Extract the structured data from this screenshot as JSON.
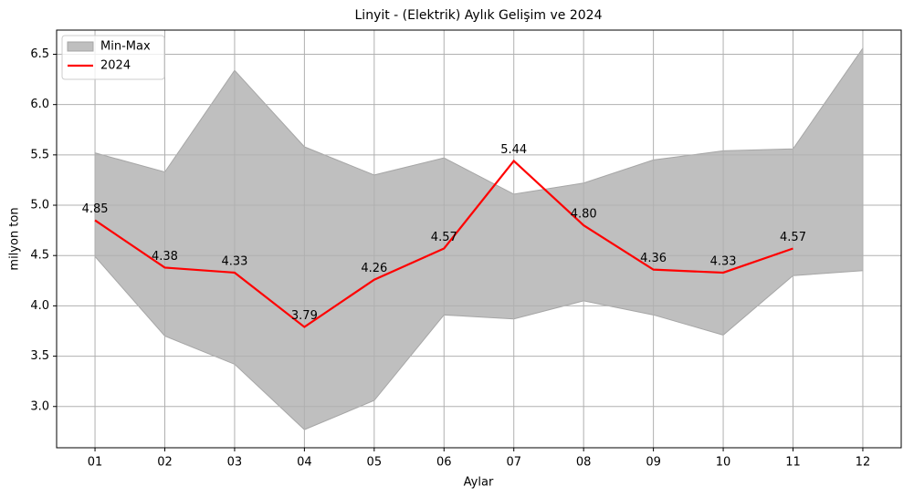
{
  "chart_data": {
    "type": "line",
    "title": "Linyit - (Elektrik) Aylık Gelişim ve 2024",
    "x_label": "Aylar",
    "y_label": "milyon ton",
    "categories": [
      "01",
      "02",
      "03",
      "04",
      "05",
      "06",
      "07",
      "08",
      "09",
      "10",
      "11",
      "12"
    ],
    "band": {
      "name": "Min-Max",
      "color": "#bfbfbf",
      "edge_color": "#a6a6a6",
      "max": [
        5.52,
        5.33,
        6.34,
        5.58,
        5.3,
        5.47,
        5.11,
        5.22,
        5.45,
        5.54,
        5.56,
        6.56
      ],
      "min": [
        4.49,
        3.7,
        3.42,
        2.77,
        3.06,
        3.91,
        3.87,
        4.05,
        3.91,
        3.71,
        4.3,
        4.35
      ]
    },
    "series": [
      {
        "name": "2024",
        "color": "#ff0000",
        "values": [
          4.85,
          4.38,
          4.33,
          3.79,
          4.26,
          4.57,
          5.44,
          4.8,
          4.36,
          4.33,
          4.57,
          null
        ],
        "value_labels": [
          "4.85",
          "4.38",
          "4.33",
          "3.79",
          "4.26",
          "4.57",
          "5.44",
          "4.80",
          "4.36",
          "4.33",
          "4.57",
          null
        ]
      }
    ],
    "ylim": [
      2.59,
      6.74
    ],
    "yticks": [
      {
        "value": 3,
        "label": "3.0"
      },
      3.5,
      {
        "value": 4,
        "label": "4.0"
      },
      4.5,
      {
        "value": 5,
        "label": "5.0"
      },
      5.5,
      {
        "value": 6,
        "label": "6.0"
      },
      6.5
    ],
    "grid": true,
    "legend": "upper left"
  }
}
